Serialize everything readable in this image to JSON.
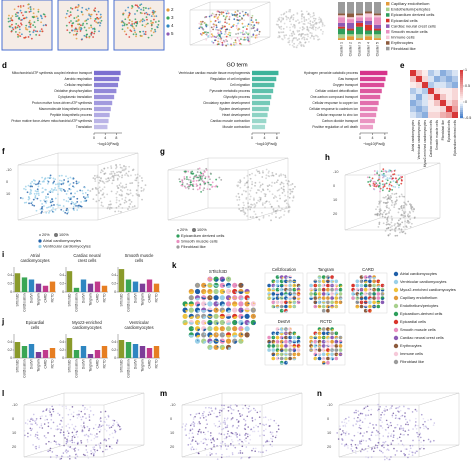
{
  "top": {
    "cluster_legend": [
      2,
      3,
      4,
      5
    ],
    "stack": {
      "clusters": [
        "Cluster 1",
        "Cluster 2",
        "Cluster 3",
        "Cluster 4",
        "Cluster 5"
      ],
      "series": [
        {
          "name": "Capillary endothelium",
          "color": "#e39b3b",
          "values": [
            0.05,
            0.1,
            0.05,
            0.1,
            0.05
          ]
        },
        {
          "name": "Endothelium/pericytes",
          "color": "#a8d08d",
          "values": [
            0.1,
            0.05,
            0.1,
            0.05,
            0.1
          ]
        },
        {
          "name": "Epicardium derived cells",
          "color": "#2e9e5b",
          "values": [
            0.15,
            0.1,
            0.2,
            0.1,
            0.1
          ]
        },
        {
          "name": "Epicardial cells",
          "color": "#d9342b",
          "values": [
            0.05,
            0.05,
            0.1,
            0.15,
            0.05
          ]
        },
        {
          "name": "Cardiac neural crest cells",
          "color": "#8e5bb5",
          "values": [
            0.1,
            0.15,
            0.05,
            0.1,
            0.1
          ]
        },
        {
          "name": "Smooth muscle cells",
          "color": "#e98fc0",
          "values": [
            0.15,
            0.1,
            0.1,
            0.1,
            0.2
          ]
        },
        {
          "name": "Immune cells",
          "color": "#f6c9d9",
          "values": [
            0.05,
            0.05,
            0.05,
            0.1,
            0.05
          ]
        },
        {
          "name": "Erythrocytes",
          "color": "#8c5a3c",
          "values": [
            0.05,
            0.1,
            0.05,
            0.05,
            0.05
          ]
        },
        {
          "name": "Fibroblast like",
          "color": "#9b9b9b",
          "values": [
            0.3,
            0.3,
            0.3,
            0.25,
            0.3
          ]
        }
      ]
    }
  },
  "d": {
    "label": "d",
    "heading": "GO term",
    "axis_label": "−log10(Padj)",
    "columns": [
      {
        "color": "#7b6fd0",
        "xlim": [
          0,
          10
        ],
        "ticks": [
          0,
          4,
          8
        ],
        "terms": [
          "Mitochondrial ATP synthesis coupled electron transport",
          "Aerobic respiration",
          "Cellular respiration",
          "Oxidative phosphorylation",
          "Cytoplasmic translation",
          "Proton motive force-driven ATP synthesis",
          "Macromolecule biosynthetic process",
          "Peptide biosynthetic process",
          "Proton motive force-driven mitochondrial ATP synthesis",
          "Translation"
        ],
        "values": [
          9.5,
          9,
          8.6,
          8,
          7.2,
          6.5,
          6,
          5.6,
          5.2,
          4.8
        ]
      },
      {
        "color": "#3bb39a",
        "xlim": [
          0,
          9
        ],
        "ticks": [
          0,
          4,
          8
        ],
        "terms": [
          "Ventricular cardiac muscle tissue morphogenesis",
          "Regulation of cell migration",
          "Cell migration",
          "Pyruvate metabolic process",
          "Glycolytic process",
          "Circulatory system development",
          "System development",
          "Heart development",
          "Cardiac muscle contraction",
          "Muscle contraction"
        ],
        "values": [
          8.5,
          7.8,
          7.2,
          6.8,
          6.2,
          5.8,
          5.4,
          5,
          4.6,
          4.2
        ]
      },
      {
        "color": "#d6338a",
        "xlim": [
          0,
          9
        ],
        "ticks": [
          0,
          4,
          8
        ],
        "terms": [
          "Hydrogen peroxide catabolic process",
          "Gas transport",
          "Oxygen transport",
          "Cellular oxidant detoxification",
          "One-carbon compound transport",
          "Cellular response to copper ion",
          "Cellular response to cadmium ion",
          "Cellular response to zinc ion",
          "Carbon dioxide transport",
          "Positive regulation of cell death"
        ],
        "values": [
          8.8,
          8.2,
          7.8,
          7,
          6.5,
          6,
          5.6,
          5.2,
          4.8,
          4.2
        ]
      }
    ]
  },
  "e": {
    "label": "e",
    "cell_types": [
      "Atrial cardiomyocytes",
      "Ventricular cardiomyocytes",
      "Myoz2-enriched cardiomyocytes",
      "Cardiac neural crest cells",
      "Smooth muscle cells",
      "Fibroblast like",
      "Epicardial cells",
      "Epicardium derived cells"
    ],
    "matrix": [
      [
        1,
        0.3,
        0.1,
        -0.2,
        -0.1,
        -0.3,
        -0.2,
        -0.1
      ],
      [
        0.3,
        1,
        0.2,
        -0.1,
        -0.3,
        -0.2,
        -0.3,
        -0.2
      ],
      [
        0.1,
        0.2,
        1,
        -0.2,
        -0.1,
        -0.1,
        -0.2,
        -0.3
      ],
      [
        -0.2,
        -0.1,
        -0.2,
        1,
        0.2,
        0.1,
        0.1,
        0.2
      ],
      [
        -0.1,
        -0.3,
        -0.1,
        0.2,
        1,
        0.3,
        0.1,
        0.2
      ],
      [
        -0.3,
        -0.2,
        -0.1,
        0.1,
        0.3,
        1,
        0.2,
        0.4
      ],
      [
        -0.2,
        -0.3,
        -0.2,
        0.1,
        0.1,
        0.2,
        1,
        0.5
      ],
      [
        -0.1,
        -0.2,
        -0.3,
        0.2,
        0.2,
        0.4,
        0.5,
        1
      ]
    ],
    "clim": [
      -0.5,
      1
    ],
    "ticks": [
      1,
      0.5,
      0,
      -0.5
    ]
  },
  "f": {
    "label": "f",
    "ticks": [
      -10,
      0,
      10
    ],
    "size_labels": [
      "20%",
      "100%"
    ],
    "legend": [
      {
        "name": "Atrial cardiomyocytes",
        "color": "#1f5fa8"
      },
      {
        "name": "Ventricular cardiomyocytes",
        "color": "#9ad0e8"
      }
    ]
  },
  "g": {
    "label": "g",
    "size_labels": [
      "20%",
      "100%"
    ],
    "legend": [
      {
        "name": "Epicardium derived cells",
        "color": "#2e9e5b"
      },
      {
        "name": "Smooth muscle cells",
        "color": "#e98fc0"
      },
      {
        "name": "Fibroblast like",
        "color": "#9b9b9b"
      }
    ]
  },
  "h": {
    "label": "h",
    "ticks": [
      -10,
      0,
      10,
      20
    ]
  },
  "methods": [
    "STitch3D",
    "Cell2location",
    "DestVI",
    "Tangram",
    "CARD",
    "RCTD"
  ],
  "method_colors": [
    "#8a9a2b",
    "#3aa655",
    "#2e86c1",
    "#7d3c98",
    "#c0398c",
    "#e67e22"
  ],
  "i": {
    "label": "i",
    "ylim": [
      0,
      0.6
    ],
    "yticks": [
      0,
      0.2,
      0.4
    ],
    "charts": [
      {
        "title": [
          "Atrial",
          "cardiomyocytes"
        ],
        "values": [
          0.45,
          0.35,
          0.3,
          0.2,
          0.15,
          0.25
        ]
      },
      {
        "title": [
          "Cardiac neural",
          "crest cells"
        ],
        "values": [
          0.5,
          0.1,
          0.3,
          0.2,
          0.25,
          0.15
        ]
      },
      {
        "title": [
          "Smooth muscle",
          "cells"
        ],
        "values": [
          0.55,
          0.3,
          0.25,
          0.2,
          0.3,
          0.2
        ]
      }
    ]
  },
  "j": {
    "label": "j",
    "ylim": [
      0,
      0.6
    ],
    "yticks": [
      0,
      0.2,
      0.4
    ],
    "charts": [
      {
        "title": [
          "Epicardial",
          "cells"
        ],
        "values": [
          0.4,
          0.3,
          0.35,
          0.15,
          0.2,
          0.25
        ]
      },
      {
        "title": [
          "Myoz2-enriched",
          "cardiomyocytes"
        ],
        "values": [
          0.5,
          0.2,
          0.3,
          0.1,
          0.2,
          0.3
        ]
      },
      {
        "title": [
          "Ventricular",
          "cardiomyocytes"
        ],
        "values": [
          0.45,
          0.4,
          0.35,
          0.3,
          0.25,
          0.3
        ]
      }
    ]
  },
  "k": {
    "label": "k",
    "panels": [
      "STitch3D",
      "Cell2location",
      "Tangram",
      "CARD",
      "DestVI",
      "RCTD"
    ],
    "legend": [
      {
        "name": "Atrial cardiomyocytes",
        "color": "#1f5fa8"
      },
      {
        "name": "Ventricular cardiomyocytes",
        "color": "#9ad0e8"
      },
      {
        "name": "Myoz2-enriched cardiomyocytes",
        "color": "#f0c23b"
      },
      {
        "name": "Capillary endothelium",
        "color": "#e39b3b"
      },
      {
        "name": "Endothelium/pericytes",
        "color": "#a8d08d"
      },
      {
        "name": "Epicardium-derived cells",
        "color": "#2e9e5b"
      },
      {
        "name": "Epicardial cells",
        "color": "#d9342b"
      },
      {
        "name": "Smooth muscle cells",
        "color": "#e98fc0"
      },
      {
        "name": "Cardiac neural crest cells",
        "color": "#8e5bb5"
      },
      {
        "name": "Erythrocytes",
        "color": "#8c5a3c"
      },
      {
        "name": "Immune cells",
        "color": "#f6c9d9"
      },
      {
        "name": "Fibroblast like",
        "color": "#9b9b9b"
      }
    ]
  },
  "l": {
    "label": "l",
    "ticks": [
      -10,
      0,
      10,
      20
    ]
  },
  "m": {
    "label": "m",
    "ticks": [
      -10,
      0,
      10,
      20
    ]
  },
  "n": {
    "label": "n",
    "ticks": [
      -10,
      0,
      10,
      20
    ]
  }
}
